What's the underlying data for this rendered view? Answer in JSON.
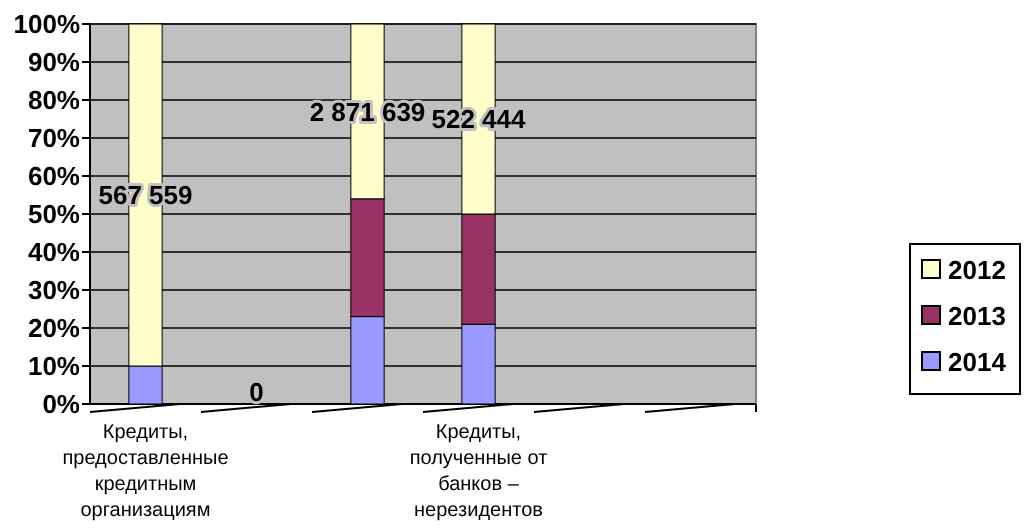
{
  "chart_data": {
    "type": "bar",
    "stacked": true,
    "categories": [
      "Кредиты, предоставленные кредитным организациям",
      null,
      null,
      "Кредиты, полученные от банков – нерезидентов",
      null,
      null
    ],
    "series": [
      {
        "name": "2014",
        "color": "#9999ff",
        "values": [
          10,
          0,
          23,
          21,
          null,
          null
        ]
      },
      {
        "name": "2013",
        "color": "#993366",
        "values": [
          0,
          0,
          31,
          29,
          null,
          null
        ]
      },
      {
        "name": "2012",
        "color": "#ffffcc",
        "values": [
          90,
          0,
          46,
          50,
          null,
          null
        ]
      }
    ],
    "annotations": [
      "567 559",
      "0",
      "2 871 639",
      "522 444"
    ],
    "ylim": [
      0,
      100
    ],
    "yticks": [
      {
        "value": 0,
        "label": "0%"
      },
      {
        "value": 10,
        "label": "10%"
      },
      {
        "value": 20,
        "label": "20%"
      },
      {
        "value": 30,
        "label": "30%"
      },
      {
        "value": 40,
        "label": "40%"
      },
      {
        "value": 50,
        "label": "50%"
      },
      {
        "value": 60,
        "label": "60%"
      },
      {
        "value": 70,
        "label": "70%"
      },
      {
        "value": 80,
        "label": "80%"
      },
      {
        "value": 90,
        "label": "90%"
      },
      {
        "value": 100,
        "label": "100%"
      }
    ],
    "grid": "y",
    "legend": "right"
  }
}
